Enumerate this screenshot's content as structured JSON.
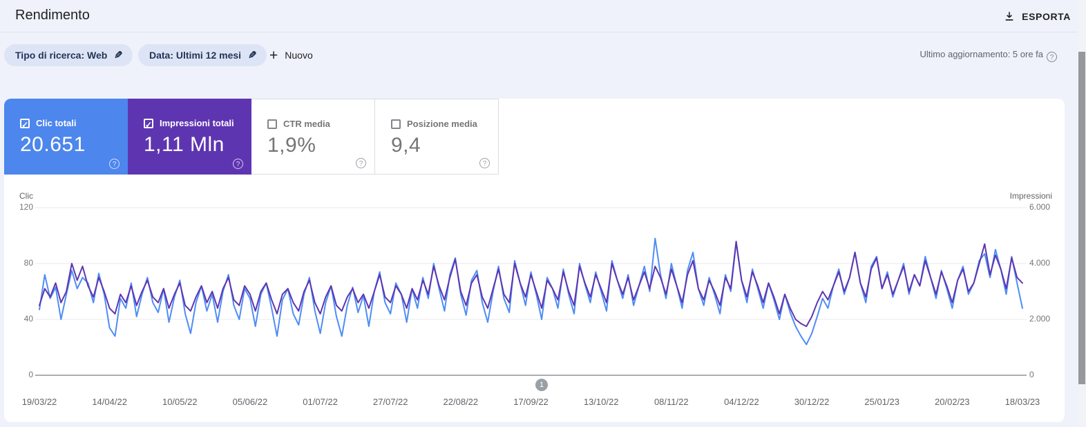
{
  "header": {
    "title": "Rendimento",
    "export_label": "ESPORTA"
  },
  "filters": {
    "search_type_chip": "Tipo di ricerca: Web",
    "date_chip": "Data: Ultimi 12 mesi",
    "new_label": "Nuovo",
    "last_update": "Ultimo aggiornamento: 5 ore fa"
  },
  "metrics": {
    "cards": [
      {
        "label": "Clic totali",
        "value": "20.651",
        "checked": true,
        "bg": "#4d86ec"
      },
      {
        "label": "Impressioni totali",
        "value": "1,11 Mln",
        "checked": true,
        "bg": "#5e35b1"
      },
      {
        "label": "CTR media",
        "value": "1,9%",
        "checked": false,
        "bg": "#ffffff"
      },
      {
        "label": "Posizione media",
        "value": "9,4",
        "checked": false,
        "bg": "#ffffff"
      }
    ]
  },
  "pagination": {
    "page": "1"
  },
  "colors": {
    "clicks_line": "#4d8df5",
    "impressions_line": "#5e35b1",
    "page_background": "#eff2fa",
    "chip_background": "#dde4f6",
    "gridline": "#e8eaed",
    "zero_line": "#8e9297"
  },
  "chart_data": {
    "type": "line",
    "title": "",
    "x_tick_labels": [
      "19/03/22",
      "14/04/22",
      "10/05/22",
      "05/06/22",
      "01/07/22",
      "27/07/22",
      "22/08/22",
      "17/09/22",
      "13/10/22",
      "08/11/22",
      "04/12/22",
      "30/12/22",
      "25/01/23",
      "20/02/23",
      "18/03/23"
    ],
    "left_axis": {
      "label": "Clic",
      "ticks": [
        0,
        40,
        80,
        120
      ],
      "tick_labels": [
        "0",
        "40",
        "80",
        "120"
      ],
      "max": 120
    },
    "right_axis": {
      "label": "Impressioni",
      "ticks": [
        0,
        2000,
        4000,
        6000
      ],
      "tick_labels": [
        "0",
        "2.000",
        "4.000",
        "6.000"
      ],
      "max": 6000
    },
    "grid": true,
    "legend_position": "none",
    "sampling_note": "daily series sampled ~every 2 days, values estimated from pixels",
    "series": [
      {
        "name": "Clic",
        "axis": "left",
        "color": "#4d8df5",
        "values": [
          47,
          72,
          55,
          63,
          40,
          58,
          75,
          62,
          70,
          66,
          52,
          73,
          58,
          34,
          28,
          55,
          48,
          66,
          42,
          58,
          70,
          52,
          45,
          62,
          38,
          56,
          68,
          44,
          30,
          52,
          64,
          46,
          58,
          38,
          60,
          72,
          50,
          40,
          62,
          55,
          35,
          58,
          66,
          48,
          28,
          54,
          62,
          44,
          36,
          58,
          70,
          46,
          30,
          52,
          64,
          42,
          28,
          50,
          63,
          45,
          57,
          35,
          60,
          74,
          52,
          44,
          66,
          58,
          38,
          62,
          48,
          70,
          55,
          80,
          62,
          46,
          72,
          84,
          58,
          43,
          68,
          75,
          52,
          38,
          60,
          78,
          55,
          45,
          82,
          66,
          50,
          74,
          58,
          40,
          70,
          62,
          48,
          76,
          58,
          44,
          80,
          65,
          52,
          74,
          60,
          46,
          82,
          68,
          55,
          72,
          50,
          64,
          78,
          60,
          98,
          72,
          55,
          80,
          64,
          48,
          75,
          88,
          62,
          50,
          70,
          58,
          44,
          72,
          60,
          95,
          68,
          52,
          76,
          62,
          48,
          66,
          54,
          40,
          58,
          45,
          35,
          28,
          22,
          30,
          42,
          55,
          48,
          64,
          76,
          58,
          70,
          88,
          66,
          52,
          78,
          85,
          62,
          74,
          56,
          68,
          80,
          58,
          72,
          64,
          85,
          70,
          55,
          75,
          62,
          48,
          68,
          78,
          58,
          66,
          82,
          87,
          70,
          90,
          76,
          58,
          85,
          66,
          48
        ]
      },
      {
        "name": "Impressioni",
        "axis": "right",
        "color": "#5e35b1",
        "values": [
          2500,
          3100,
          2800,
          3300,
          2600,
          3000,
          4000,
          3400,
          3900,
          3200,
          2800,
          3500,
          3000,
          2400,
          2200,
          2900,
          2600,
          3200,
          2500,
          3000,
          3400,
          2800,
          2600,
          3100,
          2400,
          2900,
          3300,
          2500,
          2300,
          2800,
          3200,
          2600,
          3000,
          2400,
          3100,
          3500,
          2700,
          2500,
          3200,
          2900,
          2300,
          3000,
          3300,
          2700,
          2200,
          2900,
          3100,
          2600,
          2300,
          3000,
          3400,
          2600,
          2200,
          2800,
          3200,
          2500,
          2300,
          2800,
          3100,
          2600,
          2900,
          2400,
          3000,
          3600,
          2800,
          2600,
          3200,
          2900,
          2400,
          3100,
          2700,
          3400,
          2900,
          3900,
          3200,
          2700,
          3500,
          4150,
          3000,
          2500,
          3300,
          3600,
          2800,
          2400,
          3100,
          3800,
          2900,
          2600,
          4000,
          3300,
          2800,
          3600,
          3000,
          2400,
          3400,
          3100,
          2700,
          3700,
          3000,
          2500,
          3900,
          3300,
          2800,
          3600,
          3100,
          2600,
          4000,
          3400,
          2900,
          3500,
          2700,
          3200,
          3700,
          3100,
          3900,
          3500,
          2900,
          3800,
          3200,
          2600,
          3600,
          4100,
          3100,
          2700,
          3400,
          3000,
          2500,
          3500,
          3100,
          4790,
          3400,
          2800,
          3700,
          3200,
          2600,
          3300,
          2800,
          2200,
          2900,
          2400,
          2000,
          1850,
          1750,
          2100,
          2600,
          3000,
          2700,
          3200,
          3700,
          3000,
          3500,
          4400,
          3300,
          2800,
          3800,
          4200,
          3100,
          3600,
          2900,
          3400,
          3900,
          3000,
          3600,
          3200,
          4100,
          3500,
          2900,
          3700,
          3200,
          2600,
          3400,
          3800,
          3000,
          3300,
          4000,
          4700,
          3600,
          4300,
          3800,
          3100,
          4200,
          3500,
          3300
        ]
      }
    ]
  }
}
